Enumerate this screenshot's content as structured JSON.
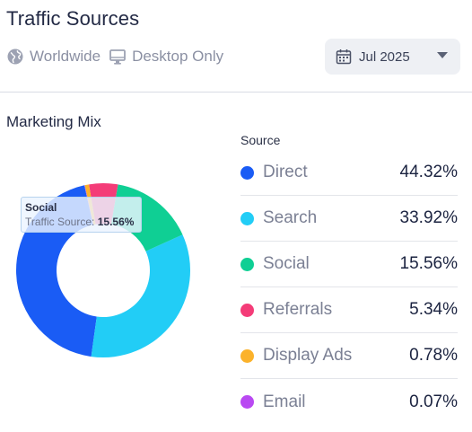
{
  "header": {
    "title": "Traffic Sources"
  },
  "filters": {
    "region": {
      "label": "Worldwide",
      "icon": "globe-icon"
    },
    "device": {
      "label": "Desktop Only",
      "icon": "monitor-icon"
    }
  },
  "date_select": {
    "value": "Jul 2025",
    "icon": "calendar-icon"
  },
  "mix": {
    "title": "Marketing Mix"
  },
  "tooltip": {
    "name": "Social",
    "label": "Traffic Source:",
    "value": "15.56%"
  },
  "legend": {
    "header": "Source",
    "items": [
      {
        "name": "Direct",
        "pct": "44.32%",
        "color": "#1a5cf5"
      },
      {
        "name": "Search",
        "pct": "33.92%",
        "color": "#22cdf6"
      },
      {
        "name": "Social",
        "pct": "15.56%",
        "color": "#0fcf94"
      },
      {
        "name": "Referrals",
        "pct": "5.34%",
        "color": "#f43c78"
      },
      {
        "name": "Display Ads",
        "pct": "0.78%",
        "color": "#fbb22b"
      },
      {
        "name": "Email",
        "pct": "0.07%",
        "color": "#b949f2"
      }
    ]
  },
  "chart_data": {
    "type": "pie",
    "title": "Marketing Mix",
    "donut": true,
    "categories": [
      "Direct",
      "Search",
      "Social",
      "Referrals",
      "Display Ads",
      "Email"
    ],
    "values": [
      44.32,
      33.92,
      15.56,
      5.34,
      0.78,
      0.07
    ],
    "colors": [
      "#1a5cf5",
      "#22cdf6",
      "#0fcf94",
      "#f43c78",
      "#fbb22b",
      "#b949f2"
    ],
    "legend": "right"
  }
}
